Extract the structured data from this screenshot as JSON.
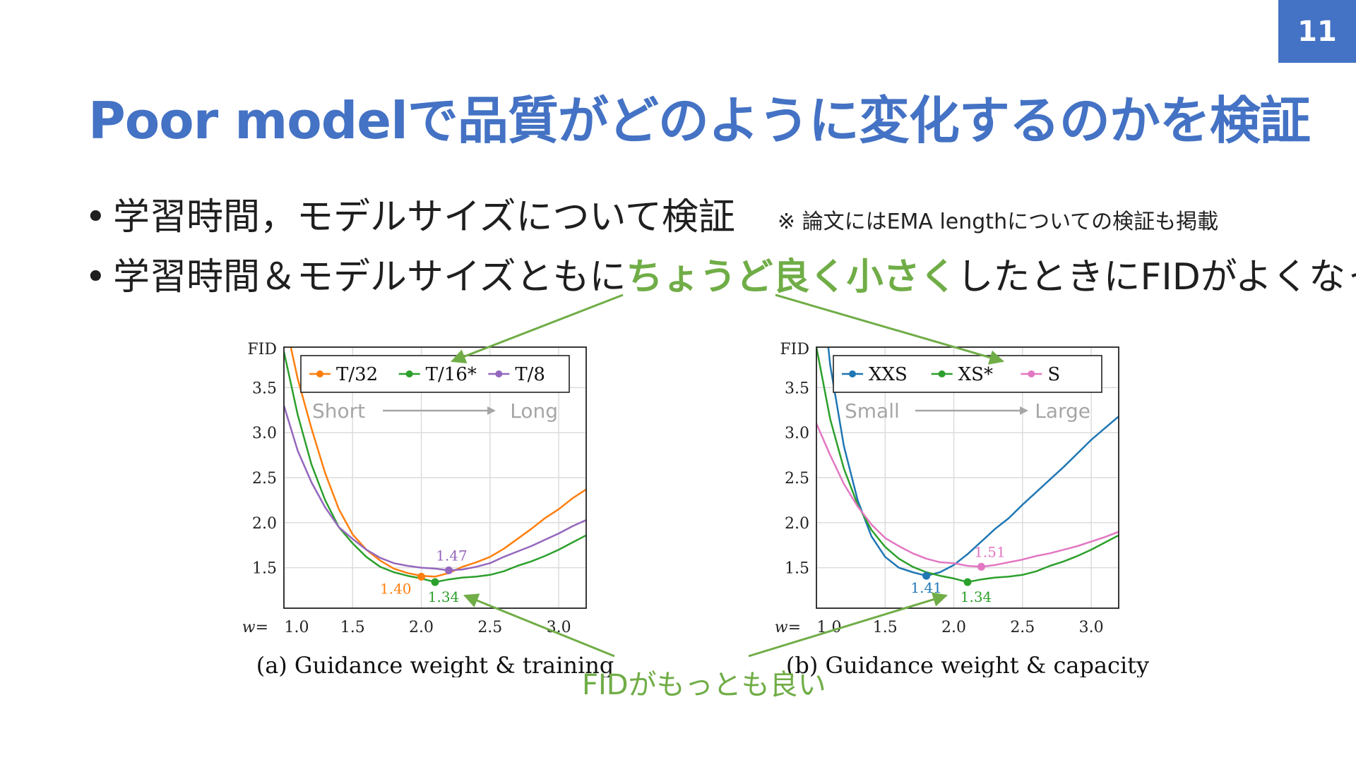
{
  "page_number": "11",
  "title": "Poor modelで品質がどのように変化するのかを検証",
  "bullets": {
    "b1": {
      "text": "学習時間，モデルサイズについて検証",
      "note": "※ 論文にはEMA lengthについての検証も掲載"
    },
    "b2": {
      "pre": "学習時間＆モデルサイズともに",
      "highlight": "ちょうど良く小さく",
      "post": "したときにFIDがよくなった"
    }
  },
  "annotation_label": "FIDがもっとも良い",
  "colors": {
    "accent": "#4472c4",
    "highlight": "#70ad47",
    "orange": "#ff7f0e",
    "green": "#2ca02c",
    "purple": "#9467bd",
    "blue": "#1f77b4",
    "pink": "#e377c2",
    "grid": "#dcdcdc"
  },
  "chart_data": [
    {
      "type": "line",
      "caption": "(a) Guidance weight & training",
      "ylabel": "FID",
      "xlabel": "w",
      "xlim": [
        1.0,
        3.2
      ],
      "ylim": [
        1.05,
        3.95
      ],
      "x_ticks": [
        "1.0",
        "1.5",
        "2.0",
        "2.5",
        "3.0"
      ],
      "x_tick_values": [
        1.0,
        1.5,
        2.0,
        2.5,
        3.0
      ],
      "y_ticks": [
        "1.5",
        "2.0",
        "2.5",
        "3.0",
        "3.5"
      ],
      "y_tick_values": [
        1.5,
        2.0,
        2.5,
        3.0,
        3.5
      ],
      "direction": {
        "from": "Short",
        "to": "Long"
      },
      "series": [
        {
          "name": "T/32",
          "color": "#ff7f0e",
          "x": [
            1.0,
            1.1,
            1.2,
            1.3,
            1.4,
            1.5,
            1.6,
            1.7,
            1.8,
            1.9,
            2.0,
            2.1,
            2.2,
            2.3,
            2.4,
            2.5,
            2.6,
            2.7,
            2.8,
            2.9,
            3.0,
            3.1,
            3.2
          ],
          "y": [
            4.3,
            3.6,
            3.05,
            2.55,
            2.15,
            1.87,
            1.7,
            1.58,
            1.49,
            1.44,
            1.41,
            1.4,
            1.44,
            1.51,
            1.56,
            1.62,
            1.71,
            1.82,
            1.93,
            2.05,
            2.15,
            2.27,
            2.37
          ],
          "min": {
            "x": 2.0,
            "y": 1.4,
            "label": "1.40"
          }
        },
        {
          "name": "T/16*",
          "color": "#2ca02c",
          "x": [
            1.0,
            1.1,
            1.2,
            1.3,
            1.4,
            1.5,
            1.6,
            1.7,
            1.8,
            1.9,
            2.0,
            2.1,
            2.2,
            2.3,
            2.4,
            2.5,
            2.6,
            2.7,
            2.8,
            2.9,
            3.0,
            3.1,
            3.2
          ],
          "y": [
            3.9,
            3.2,
            2.65,
            2.25,
            1.95,
            1.77,
            1.62,
            1.51,
            1.45,
            1.41,
            1.38,
            1.34,
            1.37,
            1.39,
            1.4,
            1.42,
            1.46,
            1.52,
            1.57,
            1.63,
            1.7,
            1.78,
            1.86
          ],
          "min": {
            "x": 2.1,
            "y": 1.34,
            "label": "1.34"
          }
        },
        {
          "name": "T/8",
          "color": "#9467bd",
          "x": [
            1.0,
            1.1,
            1.2,
            1.3,
            1.4,
            1.5,
            1.6,
            1.7,
            1.8,
            1.9,
            2.0,
            2.1,
            2.2,
            2.3,
            2.4,
            2.5,
            2.6,
            2.7,
            2.8,
            2.9,
            3.0,
            3.1,
            3.2
          ],
          "y": [
            3.3,
            2.8,
            2.45,
            2.17,
            1.95,
            1.82,
            1.7,
            1.61,
            1.55,
            1.52,
            1.5,
            1.49,
            1.47,
            1.48,
            1.51,
            1.55,
            1.62,
            1.68,
            1.74,
            1.81,
            1.88,
            1.96,
            2.03
          ],
          "min": {
            "x": 2.2,
            "y": 1.47,
            "label": "1.47"
          }
        }
      ]
    },
    {
      "type": "line",
      "caption": "(b) Guidance weight & capacity",
      "ylabel": "FID",
      "xlabel": "w",
      "xlim": [
        1.0,
        3.2
      ],
      "ylim": [
        1.05,
        3.95
      ],
      "x_ticks": [
        "1.0",
        "1.5",
        "2.0",
        "2.5",
        "3.0"
      ],
      "x_tick_values": [
        1.0,
        1.5,
        2.0,
        2.5,
        3.0
      ],
      "y_ticks": [
        "1.5",
        "2.0",
        "2.5",
        "3.0",
        "3.5"
      ],
      "y_tick_values": [
        1.5,
        2.0,
        2.5,
        3.0,
        3.5
      ],
      "direction": {
        "from": "Small",
        "to": "Large"
      },
      "series": [
        {
          "name": "XXS",
          "color": "#1f77b4",
          "x": [
            1.0,
            1.1,
            1.2,
            1.3,
            1.4,
            1.5,
            1.6,
            1.7,
            1.8,
            1.9,
            2.0,
            2.1,
            2.2,
            2.3,
            2.4,
            2.5,
            2.6,
            2.7,
            2.8,
            2.9,
            3.0,
            3.1,
            3.2
          ],
          "y": [
            5.2,
            3.75,
            2.85,
            2.25,
            1.85,
            1.62,
            1.5,
            1.45,
            1.41,
            1.45,
            1.53,
            1.65,
            1.79,
            1.93,
            2.05,
            2.2,
            2.34,
            2.48,
            2.62,
            2.77,
            2.92,
            3.05,
            3.18
          ],
          "min": {
            "x": 1.8,
            "y": 1.41,
            "label": "1.41"
          }
        },
        {
          "name": "XS*",
          "color": "#2ca02c",
          "x": [
            1.0,
            1.1,
            1.2,
            1.3,
            1.4,
            1.5,
            1.6,
            1.7,
            1.8,
            1.9,
            2.0,
            2.1,
            2.2,
            2.3,
            2.4,
            2.5,
            2.6,
            2.7,
            2.8,
            2.9,
            3.0,
            3.1,
            3.2
          ],
          "y": [
            3.95,
            3.15,
            2.6,
            2.2,
            1.92,
            1.73,
            1.6,
            1.51,
            1.45,
            1.41,
            1.38,
            1.34,
            1.37,
            1.39,
            1.4,
            1.42,
            1.46,
            1.52,
            1.57,
            1.63,
            1.7,
            1.78,
            1.86
          ],
          "min": {
            "x": 2.1,
            "y": 1.34,
            "label": "1.34"
          }
        },
        {
          "name": "S",
          "color": "#e377c2",
          "x": [
            1.0,
            1.1,
            1.2,
            1.3,
            1.4,
            1.5,
            1.6,
            1.7,
            1.8,
            1.9,
            2.0,
            2.1,
            2.2,
            2.3,
            2.4,
            2.5,
            2.6,
            2.7,
            2.8,
            2.9,
            3.0,
            3.1,
            3.2
          ],
          "y": [
            3.1,
            2.75,
            2.43,
            2.18,
            1.98,
            1.83,
            1.74,
            1.66,
            1.6,
            1.56,
            1.55,
            1.52,
            1.51,
            1.53,
            1.56,
            1.59,
            1.63,
            1.66,
            1.7,
            1.74,
            1.79,
            1.84,
            1.9
          ],
          "min": {
            "x": 2.2,
            "y": 1.51,
            "label": "1.51"
          }
        }
      ]
    }
  ]
}
